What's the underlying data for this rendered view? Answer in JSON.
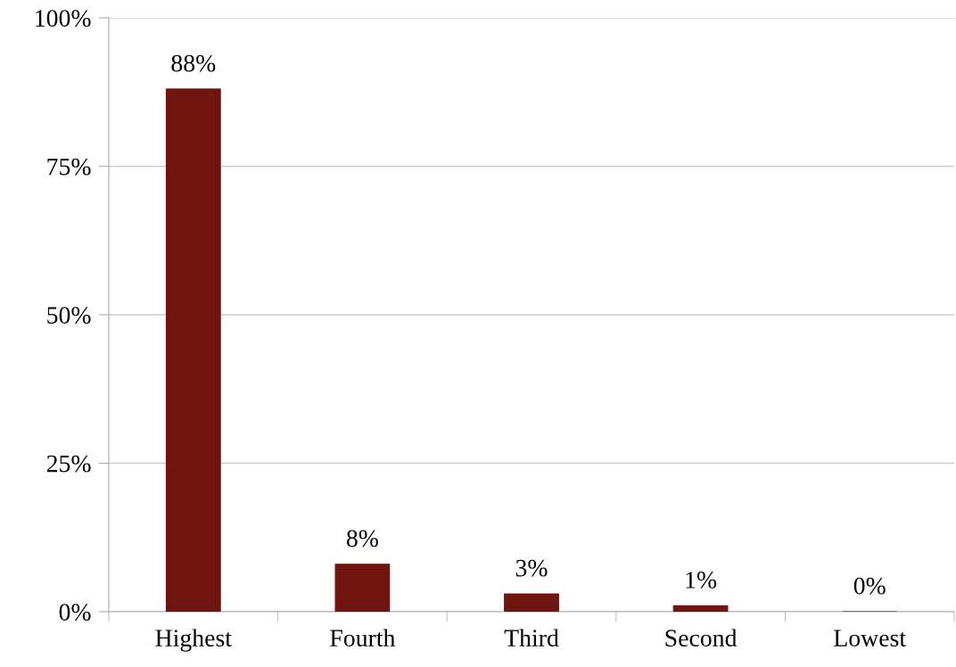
{
  "chart_data": {
    "type": "bar",
    "categories": [
      "Highest",
      "Fourth",
      "Third",
      "Second",
      "Lowest"
    ],
    "values": [
      88,
      8,
      3,
      1,
      0
    ],
    "value_labels": [
      "88%",
      "8%",
      "3%",
      "1%",
      "0%"
    ],
    "color": "#6f140e",
    "ylim": [
      0,
      100
    ],
    "yticks": [
      {
        "value": 0,
        "label": "0%"
      },
      {
        "value": 25,
        "label": "25%"
      },
      {
        "value": 50,
        "label": "50%"
      },
      {
        "value": 75,
        "label": "75%"
      },
      {
        "value": 100,
        "label": "100%"
      }
    ],
    "grid": "y"
  }
}
